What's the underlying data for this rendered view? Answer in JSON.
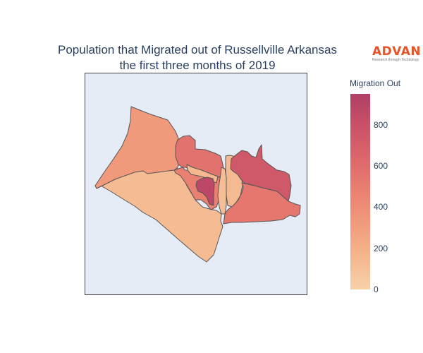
{
  "title": {
    "line1": "Population that Migrated out of Russellville Arkansas",
    "line2": "the first three months of 2019"
  },
  "logo": {
    "name": "ADVAN",
    "tagline": "Research through Technology"
  },
  "colors": {
    "map_background": "#e5ecf6",
    "region_border": "#555555",
    "colorscale": [
      "#f6d2a9",
      "#f5b78e",
      "#f19c7c",
      "#ea8171",
      "#dd686c",
      "#ca5268",
      "#b13f64"
    ]
  },
  "colorbar": {
    "title": "Migration Out",
    "range": [
      0,
      950
    ],
    "ticks": [
      "0",
      "200",
      "400",
      "600",
      "800"
    ]
  },
  "regions": [
    {
      "name": "northwest-area",
      "value": 330
    },
    {
      "name": "south-area",
      "value": 130
    },
    {
      "name": "central-north-area",
      "value": 570
    },
    {
      "name": "central-left-area",
      "value": 480
    },
    {
      "name": "central-small-area",
      "value": 150
    },
    {
      "name": "downtown-core-area",
      "value": 880
    },
    {
      "name": "east-central-area",
      "value": 140
    },
    {
      "name": "east-narrow-area",
      "value": 120
    },
    {
      "name": "northeast-area",
      "value": 740
    },
    {
      "name": "southeast-area",
      "value": 540
    }
  ]
}
